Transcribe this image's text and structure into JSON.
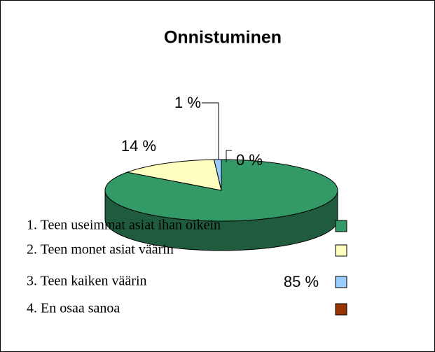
{
  "chart_data": {
    "type": "pie",
    "title": "Onnistuminen",
    "categories": [
      "1. Teen useimmat asiat ihan oikein",
      "2. Teen monet asiat väärin",
      "3. Teen kaiken väärin",
      "4. En osaa sanoa"
    ],
    "values": [
      85,
      14,
      1,
      0
    ],
    "value_labels": [
      "85 %",
      "14 %",
      "1 %",
      "0 %"
    ],
    "colors": [
      "#339966",
      "#ffffc0",
      "#99ccff",
      "#993300"
    ],
    "legend": "left"
  }
}
